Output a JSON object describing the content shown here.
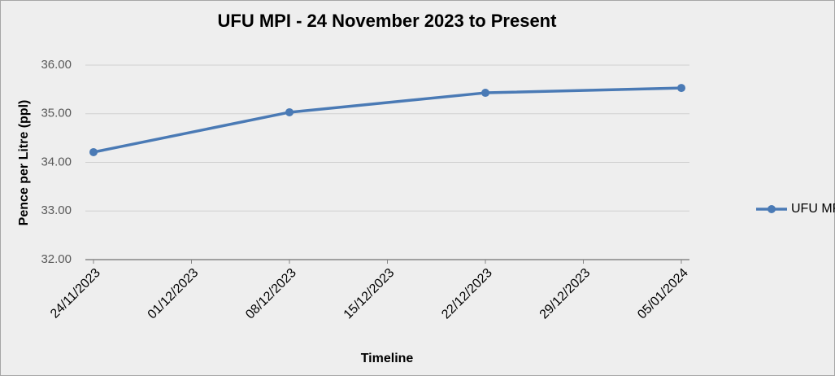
{
  "chart_data": {
    "type": "line",
    "title": "UFU MPI -  24 November 2023 to Present",
    "x_label": "Timeline",
    "y_label": "Pence per Litre (ppl)",
    "x": [
      "24/11/2023",
      "08/12/2023",
      "22/12/2023",
      "05/01/2024"
    ],
    "series": [
      {
        "name": "UFU MPI",
        "color": "#4a7ab5",
        "values": [
          34.21,
          35.03,
          35.43,
          35.53
        ]
      }
    ],
    "xlim": [
      "24/11/2023",
      "05/01/2024"
    ],
    "xticks": [
      "24/11/2023",
      "01/12/2023",
      "08/12/2023",
      "15/12/2023",
      "22/12/2023",
      "29/12/2023",
      "05/01/2024"
    ],
    "ylim": [
      32,
      36
    ],
    "yticks": [
      {
        "value": 32,
        "label": "32.00"
      },
      {
        "value": 33,
        "label": "33.00"
      },
      {
        "value": 34,
        "label": "34.00"
      },
      {
        "value": 35,
        "label": "35.00"
      },
      {
        "value": 36,
        "label": "36.00"
      }
    ],
    "grid": true,
    "legend": "right"
  }
}
